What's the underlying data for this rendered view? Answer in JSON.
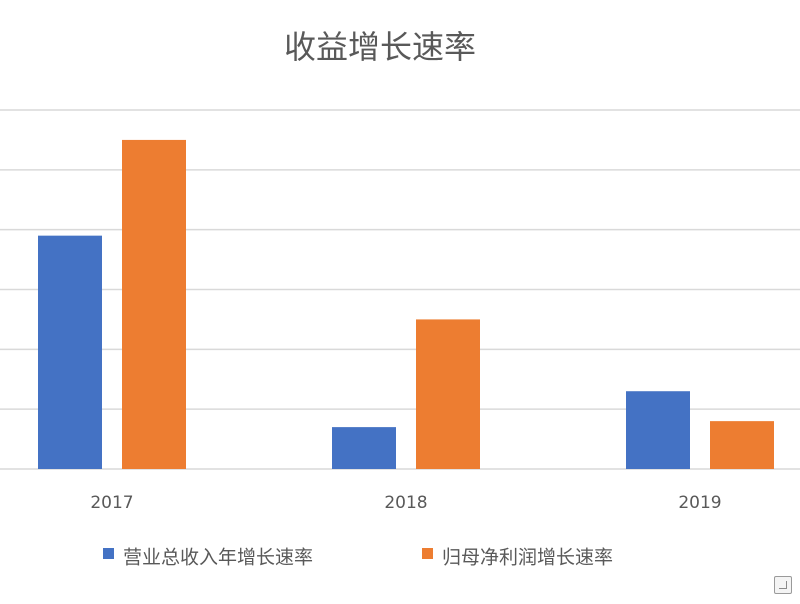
{
  "chart_data": {
    "type": "bar",
    "title": "收益增长速率",
    "categories": [
      "2017",
      "2018",
      "2019"
    ],
    "series": [
      {
        "name": "营业总收入年增长速率",
        "color": "#4472C4",
        "values": [
          3.9,
          0.7,
          1.3
        ]
      },
      {
        "name": "归母净利润增长速率",
        "color": "#ED7D31",
        "values": [
          5.5,
          2.5,
          0.8
        ]
      }
    ],
    "xlabel": "",
    "ylabel": "",
    "ylim": [
      0,
      6
    ],
    "y_ticks_visible": false,
    "grid": true,
    "legend_position": "bottom"
  },
  "ui": {
    "corner_icon": "chart-options-icon"
  }
}
